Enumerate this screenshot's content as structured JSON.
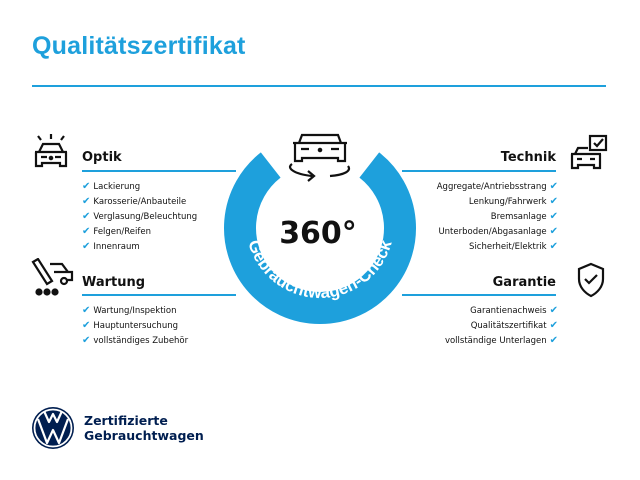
{
  "title": "Qualitätszertifikat",
  "badge": {
    "value": "360°",
    "arc_text": "Gebrauchtwagen-Check"
  },
  "sections": {
    "optik": {
      "title": "Optik",
      "items": [
        "Lackierung",
        "Karosserie/Anbauteile",
        "Verglasung/Beleuchtung",
        "Felgen/Reifen",
        "Innenraum"
      ]
    },
    "wartung": {
      "title": "Wartung",
      "items": [
        "Wartung/Inspektion",
        "Hauptuntersuchung",
        "vollständiges Zubehör"
      ]
    },
    "technik": {
      "title": "Technik",
      "items": [
        "Aggregate/Antriebsstrang",
        "Lenkung/Fahrwerk",
        "Bremsanlage",
        "Unterboden/Abgasanlage",
        "Sicherheit/Elektrik"
      ]
    },
    "garantie": {
      "title": "Garantie",
      "items": [
        "Garantienachweis",
        "Qualitätszertifikat",
        "vollständige Unterlagen"
      ]
    }
  },
  "check_glyph": "✔",
  "footer": {
    "line1": "Zertifizierte",
    "line2": "Gebrauchtwagen"
  },
  "colors": {
    "accent": "#1ea0dc",
    "brand_navy": "#001e50"
  }
}
